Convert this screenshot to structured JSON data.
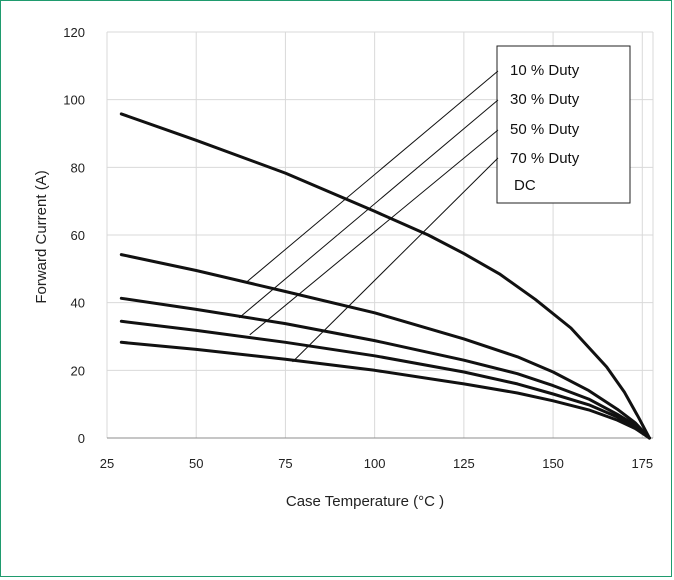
{
  "chart_data": {
    "type": "line",
    "title": "",
    "xlabel": "Case Temperature (°C )",
    "ylabel": "Forward Current (A)",
    "xlim": [
      25,
      178
    ],
    "ylim": [
      0,
      120
    ],
    "x_ticks": [
      25,
      50,
      75,
      100,
      125,
      150,
      175
    ],
    "y_ticks": [
      0,
      20,
      40,
      60,
      80,
      100,
      120
    ],
    "grid": true,
    "legend_position": "top-right",
    "line_color": "#111111",
    "frame_color": "#1f9b6e",
    "series": [
      {
        "name": "10 % Duty",
        "x": [
          29,
          50,
          75,
          100,
          115,
          125,
          135,
          145,
          155,
          165,
          170,
          174,
          177
        ],
        "y": [
          95.8,
          88,
          78.3,
          67,
          60,
          54.5,
          48.5,
          41,
          32.5,
          21,
          13.5,
          6,
          0
        ]
      },
      {
        "name": "30 % Duty",
        "x": [
          29,
          50,
          75,
          100,
          125,
          140,
          150,
          160,
          168,
          173,
          177
        ],
        "y": [
          54.2,
          49.5,
          43.3,
          37,
          29.3,
          24,
          19.5,
          14,
          8.5,
          4.5,
          0
        ]
      },
      {
        "name": "50 % Duty",
        "x": [
          29,
          50,
          75,
          100,
          125,
          140,
          150,
          160,
          168,
          173,
          177
        ],
        "y": [
          41.3,
          38,
          33.8,
          28.8,
          23,
          19,
          15.5,
          11.5,
          7,
          3.8,
          0
        ]
      },
      {
        "name": "70 % Duty",
        "x": [
          29,
          50,
          75,
          100,
          125,
          140,
          150,
          160,
          168,
          173,
          177
        ],
        "y": [
          34.5,
          31.8,
          28.3,
          24.3,
          19.5,
          16,
          13,
          9.8,
          6.2,
          3.3,
          0
        ]
      },
      {
        "name": "DC",
        "x": [
          29,
          50,
          75,
          100,
          125,
          140,
          150,
          160,
          168,
          173,
          177
        ],
        "y": [
          28.3,
          26.2,
          23.3,
          20,
          16,
          13.3,
          11,
          8.3,
          5.3,
          2.8,
          0
        ]
      }
    ],
    "annotation_anchors": [
      {
        "x": 64,
        "y": 46
      },
      {
        "x": 62,
        "y": 35.5
      },
      {
        "x": 65,
        "y": 30.5
      },
      {
        "x": 77,
        "y": 22.5
      }
    ]
  }
}
